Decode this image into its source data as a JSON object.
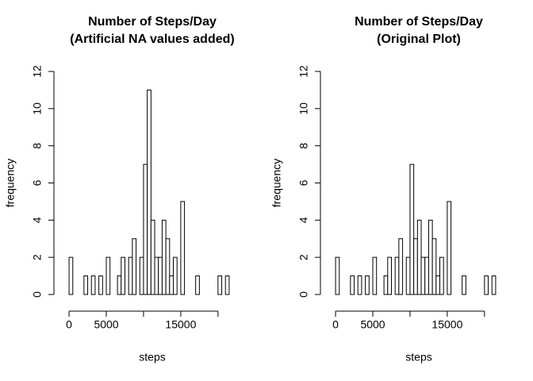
{
  "chart_data": [
    {
      "type": "histogram",
      "title": [
        "Number of Steps/Day",
        "(Artificial NA values added)"
      ],
      "xlabel": "steps",
      "ylabel": "frequency",
      "bins": [
        0,
        500,
        1000,
        1500,
        2000,
        2500,
        3000,
        3500,
        4000,
        4500,
        5000,
        5500,
        6000,
        6500,
        7000,
        7500,
        8000,
        8500,
        9000,
        9500,
        10000,
        10500,
        11000,
        11500,
        12000,
        12500,
        13000,
        13500,
        14000,
        14500,
        15000,
        15500,
        16000,
        16500,
        17000,
        17500,
        18000,
        18500,
        19000,
        19500,
        20000,
        20500,
        21000,
        21500
      ],
      "counts": [
        2,
        0,
        0,
        0,
        1,
        0,
        1,
        0,
        1,
        0,
        2,
        0,
        0,
        1,
        2,
        0,
        2,
        3,
        0,
        2,
        7,
        11,
        4,
        2,
        2,
        4,
        3,
        1,
        2,
        0,
        5,
        0,
        0,
        0,
        1,
        0,
        0,
        0,
        0,
        0,
        1,
        0,
        1
      ],
      "color": "#ffffff",
      "xlim": [
        -860,
        22360
      ],
      "ylim": [
        0,
        12
      ],
      "xticks": [
        0,
        5000,
        {
          "value": 10000,
          "label": null
        },
        15000,
        {
          "value": 20000,
          "label": null
        }
      ],
      "yticks": [
        0,
        2,
        4,
        6,
        8,
        10,
        12
      ]
    },
    {
      "type": "histogram",
      "title": [
        "Number of Steps/Day",
        "(Original Plot)"
      ],
      "xlabel": "steps",
      "ylabel": "frequency",
      "bins": [
        0,
        500,
        1000,
        1500,
        2000,
        2500,
        3000,
        3500,
        4000,
        4500,
        5000,
        5500,
        6000,
        6500,
        7000,
        7500,
        8000,
        8500,
        9000,
        9500,
        10000,
        10500,
        11000,
        11500,
        12000,
        12500,
        13000,
        13500,
        14000,
        14500,
        15000,
        15500,
        16000,
        16500,
        17000,
        17500,
        18000,
        18500,
        19000,
        19500,
        20000,
        20500,
        21000,
        21500
      ],
      "counts": [
        2,
        0,
        0,
        0,
        1,
        0,
        1,
        0,
        1,
        0,
        2,
        0,
        0,
        1,
        2,
        0,
        2,
        3,
        0,
        2,
        7,
        3,
        4,
        2,
        2,
        4,
        3,
        1,
        2,
        0,
        5,
        0,
        0,
        0,
        1,
        0,
        0,
        0,
        0,
        0,
        1,
        0,
        1
      ],
      "color": "#ffffff",
      "xlim": [
        -860,
        22360
      ],
      "ylim": [
        0,
        12
      ],
      "xticks": [
        0,
        5000,
        {
          "value": 10000,
          "label": null
        },
        15000,
        {
          "value": 20000,
          "label": null
        }
      ],
      "yticks": [
        0,
        2,
        4,
        6,
        8,
        10,
        12
      ]
    }
  ]
}
